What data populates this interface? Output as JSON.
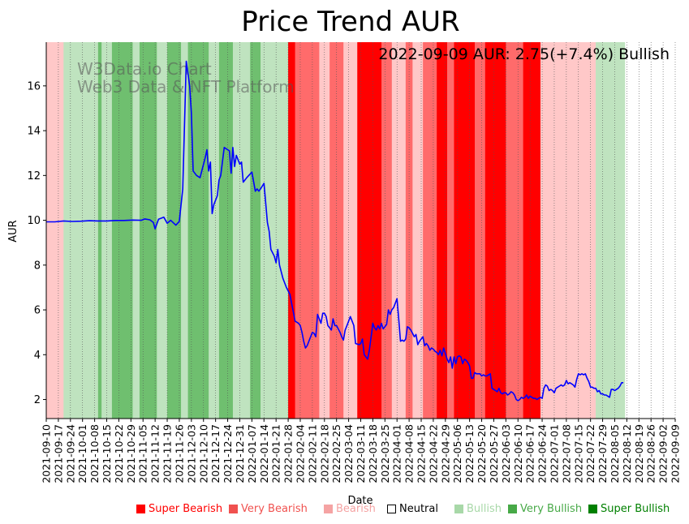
{
  "chart_data": {
    "type": "line",
    "title": "Price Trend AUR",
    "annotation": "2022-09-09 AUR: 2.75(+7.4%) Bullish",
    "watermark": [
      "W3Data.io Chart",
      "Web3 Data & NFT Platform"
    ],
    "xlabel": "Date",
    "ylabel": "AUR",
    "ylim": [
      1.15,
      17.95
    ],
    "yticks": [
      2,
      4,
      6,
      8,
      10,
      12,
      14,
      16
    ],
    "start_date": "2021-09-10",
    "end_date": "2022-09-09",
    "xticks": [
      "2021-09-10",
      "2021-09-17",
      "2021-09-24",
      "2021-10-01",
      "2021-10-08",
      "2021-10-15",
      "2021-10-22",
      "2021-10-29",
      "2021-11-05",
      "2021-11-12",
      "2021-11-19",
      "2021-11-26",
      "2021-12-03",
      "2021-12-10",
      "2021-12-17",
      "2021-12-24",
      "2021-12-31",
      "2022-01-07",
      "2022-01-14",
      "2022-01-21",
      "2022-01-28",
      "2022-02-04",
      "2022-02-11",
      "2022-02-18",
      "2022-02-25",
      "2022-03-04",
      "2022-03-11",
      "2022-03-18",
      "2022-03-25",
      "2022-04-01",
      "2022-04-08",
      "2022-04-15",
      "2022-04-22",
      "2022-04-29",
      "2022-05-06",
      "2022-05-13",
      "2022-05-20",
      "2022-05-27",
      "2022-06-03",
      "2022-06-10",
      "2022-06-17",
      "2022-06-24",
      "2022-07-01",
      "2022-07-08",
      "2022-07-15",
      "2022-07-22",
      "2022-07-29",
      "2022-08-05",
      "2022-08-12",
      "2022-08-19",
      "2022-08-26",
      "2022-09-02",
      "2022-09-09"
    ],
    "series": [
      {
        "name": "AUR",
        "color": "#0000ff",
        "points": [
          [
            0,
            9.93
          ],
          [
            5,
            9.93
          ],
          [
            10,
            9.97
          ],
          [
            15,
            9.95
          ],
          [
            20,
            9.96
          ],
          [
            25,
            9.98
          ],
          [
            30,
            9.97
          ],
          [
            35,
            9.97
          ],
          [
            40,
            9.99
          ],
          [
            45,
            9.99
          ],
          [
            50,
            10.01
          ],
          [
            55,
            10.0
          ],
          [
            57,
            10.06
          ],
          [
            60,
            10.02
          ],
          [
            62,
            9.9
          ],
          [
            63,
            9.62
          ],
          [
            65,
            10.05
          ],
          [
            68,
            10.14
          ],
          [
            70,
            9.87
          ],
          [
            72,
            10.0
          ],
          [
            75,
            9.78
          ],
          [
            77,
            9.95
          ],
          [
            79,
            11.4
          ],
          [
            81,
            17.1
          ],
          [
            83,
            16.0
          ],
          [
            84,
            14.8
          ],
          [
            85,
            12.2
          ],
          [
            87,
            12.0
          ],
          [
            89,
            11.9
          ],
          [
            92,
            12.8
          ],
          [
            93,
            13.15
          ],
          [
            94,
            12.2
          ],
          [
            95,
            12.6
          ],
          [
            96,
            10.3
          ],
          [
            97,
            10.7
          ],
          [
            98,
            10.9
          ],
          [
            99,
            11.1
          ],
          [
            100,
            11.8
          ],
          [
            101,
            12.0
          ],
          [
            103,
            13.25
          ],
          [
            106,
            13.1
          ],
          [
            107,
            12.1
          ],
          [
            108,
            13.25
          ],
          [
            109,
            12.4
          ],
          [
            110,
            12.9
          ],
          [
            112,
            12.5
          ],
          [
            113,
            12.6
          ],
          [
            114,
            11.7
          ],
          [
            116,
            11.9
          ],
          [
            119,
            12.15
          ],
          [
            121,
            11.3
          ],
          [
            122,
            11.4
          ],
          [
            123,
            11.3
          ],
          [
            124,
            11.4
          ],
          [
            126,
            11.65
          ],
          [
            128,
            9.9
          ],
          [
            129,
            9.5
          ],
          [
            130,
            8.7
          ],
          [
            132,
            8.4
          ],
          [
            133,
            8.1
          ],
          [
            134,
            8.7
          ],
          [
            135,
            8.0
          ],
          [
            137,
            7.4
          ],
          [
            139,
            7.0
          ],
          [
            141,
            6.7
          ],
          [
            142,
            6.3
          ],
          [
            143,
            5.9
          ],
          [
            144,
            5.5
          ],
          [
            146,
            5.4
          ],
          [
            147,
            5.3
          ],
          [
            148,
            5.0
          ],
          [
            149,
            4.6
          ],
          [
            150,
            4.3
          ],
          [
            151,
            4.4
          ],
          [
            152,
            4.6
          ],
          [
            154,
            5.0
          ],
          [
            155,
            4.95
          ],
          [
            156,
            4.8
          ],
          [
            157,
            5.8
          ],
          [
            158,
            5.6
          ],
          [
            159,
            5.4
          ],
          [
            160,
            5.85
          ],
          [
            161,
            5.85
          ],
          [
            162,
            5.7
          ],
          [
            163,
            5.3
          ],
          [
            164,
            5.2
          ],
          [
            165,
            5.1
          ],
          [
            166,
            5.6
          ],
          [
            167,
            5.3
          ],
          [
            168,
            5.3
          ],
          [
            169,
            5.15
          ],
          [
            170,
            5.0
          ],
          [
            171,
            4.8
          ],
          [
            172,
            4.65
          ],
          [
            173,
            5.1
          ],
          [
            174,
            5.3
          ],
          [
            175,
            5.5
          ],
          [
            176,
            5.7
          ],
          [
            177,
            5.5
          ],
          [
            178,
            5.3
          ],
          [
            179,
            4.5
          ],
          [
            181,
            4.45
          ],
          [
            182,
            4.5
          ],
          [
            183,
            4.7
          ],
          [
            184,
            4.0
          ],
          [
            185,
            3.9
          ],
          [
            186,
            3.8
          ],
          [
            187,
            4.2
          ],
          [
            188,
            4.8
          ],
          [
            189,
            5.4
          ],
          [
            190,
            5.2
          ],
          [
            191,
            5.1
          ],
          [
            192,
            5.3
          ],
          [
            193,
            5.15
          ],
          [
            194,
            5.4
          ],
          [
            195,
            5.15
          ],
          [
            196,
            5.25
          ],
          [
            197,
            5.35
          ],
          [
            198,
            6.0
          ],
          [
            199,
            5.8
          ],
          [
            200,
            6.0
          ],
          [
            201,
            6.1
          ],
          [
            202,
            6.3
          ],
          [
            203,
            6.5
          ],
          [
            204,
            5.6
          ],
          [
            205,
            4.6
          ],
          [
            206,
            4.65
          ],
          [
            207,
            4.6
          ],
          [
            208,
            4.7
          ],
          [
            209,
            5.25
          ],
          [
            210,
            5.2
          ],
          [
            211,
            5.1
          ],
          [
            212,
            4.95
          ],
          [
            213,
            4.8
          ],
          [
            214,
            4.9
          ],
          [
            215,
            4.45
          ],
          [
            216,
            4.6
          ],
          [
            217,
            4.7
          ],
          [
            218,
            4.8
          ],
          [
            219,
            4.4
          ],
          [
            220,
            4.5
          ],
          [
            221,
            4.4
          ],
          [
            222,
            4.2
          ],
          [
            223,
            4.3
          ],
          [
            224,
            4.25
          ],
          [
            225,
            4.15
          ],
          [
            226,
            4.1
          ],
          [
            227,
            4.0
          ],
          [
            228,
            4.2
          ],
          [
            229,
            3.95
          ],
          [
            230,
            4.3
          ],
          [
            231,
            4.05
          ],
          [
            232,
            3.8
          ],
          [
            233,
            3.65
          ],
          [
            234,
            3.9
          ],
          [
            235,
            3.4
          ],
          [
            236,
            3.9
          ],
          [
            237,
            3.6
          ],
          [
            238,
            3.9
          ],
          [
            239,
            3.95
          ],
          [
            240,
            3.9
          ],
          [
            241,
            3.6
          ],
          [
            242,
            3.8
          ],
          [
            243,
            3.75
          ],
          [
            244,
            3.65
          ],
          [
            245,
            3.5
          ],
          [
            246,
            2.95
          ],
          [
            247,
            2.95
          ],
          [
            248,
            3.2
          ],
          [
            249,
            3.15
          ],
          [
            250,
            3.15
          ],
          [
            251,
            3.15
          ],
          [
            252,
            3.05
          ],
          [
            253,
            3.1
          ],
          [
            254,
            3.05
          ],
          [
            255,
            3.05
          ],
          [
            256,
            3.1
          ],
          [
            257,
            3.15
          ],
          [
            258,
            2.5
          ],
          [
            259,
            2.45
          ],
          [
            260,
            2.4
          ],
          [
            261,
            2.35
          ],
          [
            262,
            2.5
          ],
          [
            263,
            2.3
          ],
          [
            264,
            2.25
          ],
          [
            265,
            2.3
          ],
          [
            266,
            2.3
          ],
          [
            267,
            2.2
          ],
          [
            268,
            2.25
          ],
          [
            269,
            2.35
          ],
          [
            270,
            2.3
          ],
          [
            271,
            2.2
          ],
          [
            272,
            2.0
          ],
          [
            273,
            1.95
          ],
          [
            274,
            2.0
          ],
          [
            275,
            2.1
          ],
          [
            276,
            2.05
          ],
          [
            277,
            2.1
          ],
          [
            278,
            2.2
          ],
          [
            279,
            2.05
          ],
          [
            280,
            2.15
          ],
          [
            281,
            2.1
          ],
          [
            282,
            2.05
          ],
          [
            283,
            2.05
          ],
          [
            284,
            2.0
          ],
          [
            285,
            2.05
          ],
          [
            286,
            2.1
          ],
          [
            287,
            2.05
          ],
          [
            288,
            2.5
          ],
          [
            289,
            2.65
          ],
          [
            290,
            2.6
          ],
          [
            291,
            2.4
          ],
          [
            292,
            2.45
          ],
          [
            293,
            2.4
          ],
          [
            294,
            2.3
          ],
          [
            295,
            2.5
          ],
          [
            296,
            2.55
          ],
          [
            297,
            2.6
          ],
          [
            298,
            2.65
          ],
          [
            299,
            2.6
          ],
          [
            300,
            2.65
          ],
          [
            301,
            2.85
          ],
          [
            302,
            2.7
          ],
          [
            303,
            2.75
          ],
          [
            304,
            2.7
          ],
          [
            305,
            2.65
          ],
          [
            306,
            2.55
          ],
          [
            307,
            2.9
          ],
          [
            308,
            3.15
          ],
          [
            309,
            3.1
          ],
          [
            310,
            3.15
          ],
          [
            311,
            3.1
          ],
          [
            312,
            3.15
          ],
          [
            313,
            2.95
          ],
          [
            314,
            2.8
          ],
          [
            315,
            2.55
          ],
          [
            316,
            2.55
          ],
          [
            317,
            2.5
          ],
          [
            318,
            2.5
          ],
          [
            319,
            2.35
          ],
          [
            320,
            2.4
          ],
          [
            321,
            2.25
          ],
          [
            322,
            2.25
          ],
          [
            323,
            2.2
          ],
          [
            324,
            2.2
          ],
          [
            325,
            2.15
          ],
          [
            326,
            2.1
          ],
          [
            327,
            2.45
          ],
          [
            328,
            2.45
          ],
          [
            329,
            2.4
          ],
          [
            330,
            2.45
          ],
          [
            331,
            2.5
          ],
          [
            332,
            2.6
          ],
          [
            333,
            2.75
          ],
          [
            334,
            2.75
          ]
        ]
      }
    ],
    "sentiment_bands": [
      [
        0,
        10,
        "bearish"
      ],
      [
        10,
        30,
        "bullish"
      ],
      [
        30,
        32,
        "very_bullish"
      ],
      [
        32,
        38,
        "bullish"
      ],
      [
        38,
        50,
        "very_bullish"
      ],
      [
        50,
        54,
        "bullish"
      ],
      [
        54,
        64,
        "very_bullish"
      ],
      [
        64,
        70,
        "bullish"
      ],
      [
        70,
        78,
        "very_bullish"
      ],
      [
        78,
        82,
        "bullish"
      ],
      [
        82,
        94,
        "very_bullish"
      ],
      [
        94,
        100,
        "bullish"
      ],
      [
        100,
        108,
        "very_bullish"
      ],
      [
        108,
        118,
        "bullish"
      ],
      [
        118,
        124,
        "very_bullish"
      ],
      [
        124,
        140,
        "bullish"
      ],
      [
        140,
        144,
        "super_bearish"
      ],
      [
        144,
        158,
        "very_bearish"
      ],
      [
        158,
        164,
        "bearish"
      ],
      [
        164,
        172,
        "very_bearish"
      ],
      [
        172,
        180,
        "bearish"
      ],
      [
        180,
        194,
        "super_bearish"
      ],
      [
        194,
        200,
        "very_bearish"
      ],
      [
        200,
        208,
        "bearish"
      ],
      [
        208,
        212,
        "very_bearish"
      ],
      [
        212,
        218,
        "bearish"
      ],
      [
        218,
        226,
        "very_bearish"
      ],
      [
        226,
        232,
        "super_bearish"
      ],
      [
        232,
        236,
        "very_bearish"
      ],
      [
        236,
        248,
        "super_bearish"
      ],
      [
        248,
        254,
        "very_bearish"
      ],
      [
        254,
        266,
        "super_bearish"
      ],
      [
        266,
        276,
        "very_bearish"
      ],
      [
        276,
        286,
        "super_bearish"
      ],
      [
        286,
        318,
        "bearish"
      ],
      [
        318,
        334,
        "bullish"
      ]
    ],
    "legend": [
      {
        "label": "Super Bearish",
        "color": "#ff0000",
        "mark": "■"
      },
      {
        "label": "Very Bearish",
        "color": "#f0514f",
        "mark": "■"
      },
      {
        "label": "Bearish",
        "color": "#f5a3a3",
        "mark": "■"
      },
      {
        "label": "Neutral",
        "color": "#000000",
        "mark": "□"
      },
      {
        "label": "Bullish",
        "color": "#a8d8a8",
        "mark": "■"
      },
      {
        "label": "Very Bullish",
        "color": "#47a947",
        "mark": "■"
      },
      {
        "label": "Super Bullish",
        "color": "#008000",
        "mark": "■"
      }
    ],
    "band_colors": {
      "super_bearish": "#ff0000",
      "very_bearish": "#ff6b6b",
      "bearish": "#ffc8c8",
      "bullish": "#bfe3bf",
      "very_bullish": "#6fbf6f",
      "super_bullish": "#008000"
    },
    "watermark_color": "#555555"
  }
}
